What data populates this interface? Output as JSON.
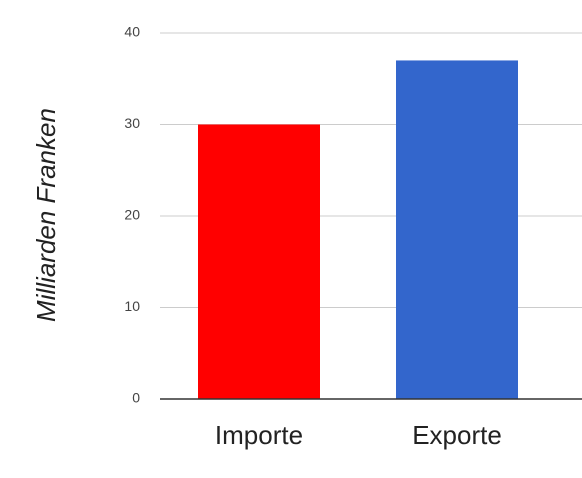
{
  "chart_data": {
    "type": "bar",
    "y_label": "Milliarden Franken",
    "categories": [
      "Importe",
      "Exporte"
    ],
    "values": [
      30,
      37
    ],
    "colors": [
      "#ff0000",
      "#3366cc"
    ],
    "ylim": [
      0,
      40
    ],
    "yticks": [
      0,
      10,
      20,
      30,
      40
    ],
    "grid": true
  }
}
